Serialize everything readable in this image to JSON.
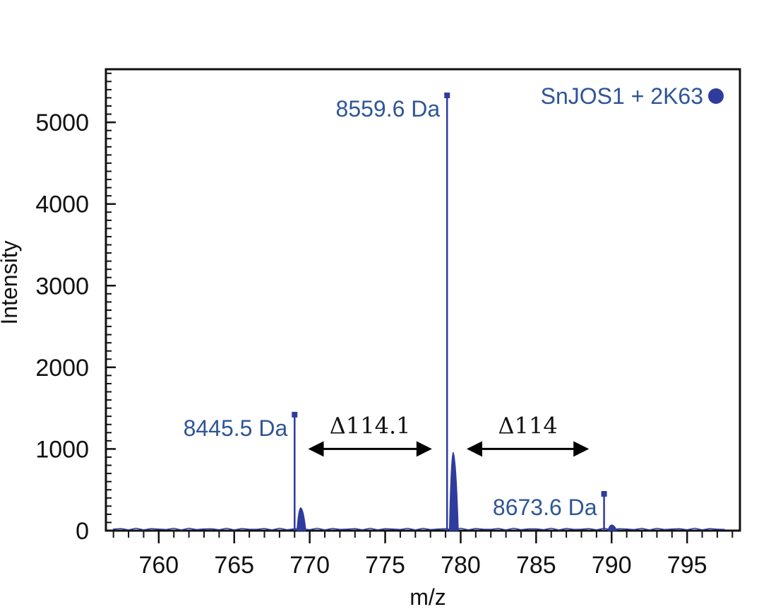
{
  "chart_data": {
    "type": "line",
    "title": "",
    "xlabel": "m/z",
    "ylabel": "Intensity",
    "xlim": [
      756.5,
      798.5
    ],
    "ylim": [
      0,
      5650
    ],
    "xticks": [
      760,
      765,
      770,
      775,
      780,
      785,
      790,
      795
    ],
    "yticks": [
      0,
      1000,
      2000,
      3000,
      4000,
      5000
    ],
    "grid": false,
    "series": [
      {
        "name": "SnJOS1 + 2K63",
        "color": "#2e3c9e",
        "marker": "circle",
        "peaks": [
          {
            "x": 769.0,
            "y": 1420,
            "label": "8445.5 Da"
          },
          {
            "x": 779.1,
            "y": 5330,
            "label": "8559.6 Da"
          },
          {
            "x": 789.5,
            "y": 450,
            "label": "8673.6 Da"
          }
        ],
        "minor_peaks": [
          {
            "x": 769.4,
            "y": 280
          },
          {
            "x": 779.5,
            "y": 960
          },
          {
            "x": 790.0,
            "y": 70
          }
        ]
      }
    ],
    "annotations": [
      {
        "text": "Δ114.1",
        "x_from": 769.9,
        "x_to": 778.1,
        "y": 1000
      },
      {
        "text": "Δ114",
        "x_from": 780.4,
        "x_to": 788.5,
        "y": 1000
      }
    ],
    "legend": {
      "position": "top-right",
      "label": "SnJOS1 + 2K63"
    }
  },
  "colors": {
    "series": "#2e3c9e",
    "labels": "#2f5596",
    "axis": "#111111"
  }
}
